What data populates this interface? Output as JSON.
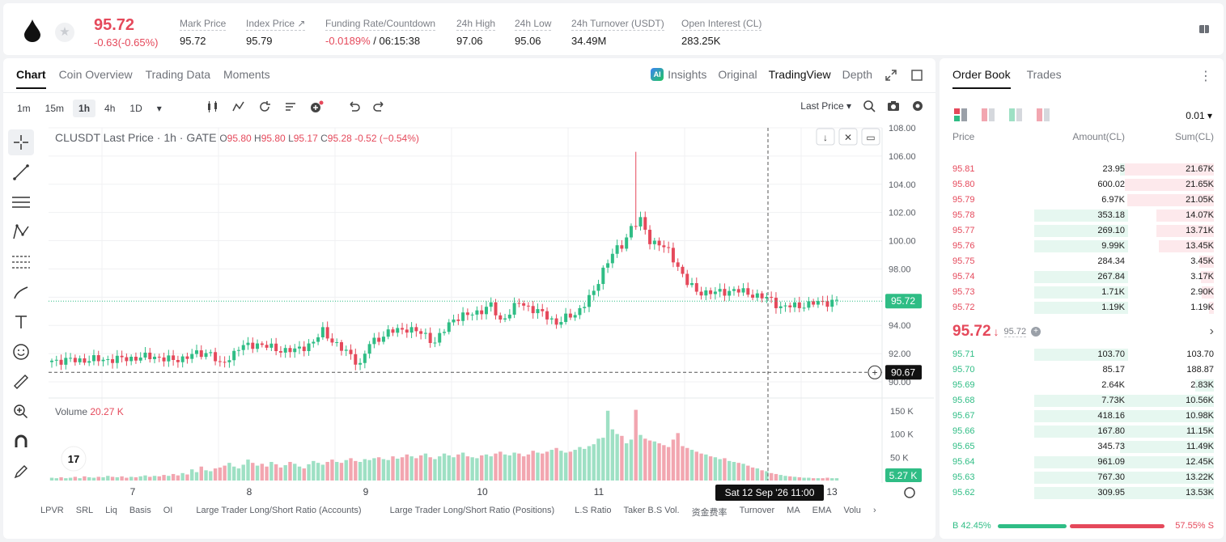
{
  "ticker": {
    "last_price": "95.72",
    "change": "-0.63(-0.65%)",
    "stats": [
      {
        "label": "Mark Price",
        "value": "95.72"
      },
      {
        "label": "Index Price ↗",
        "value": "95.79"
      },
      {
        "label": "Funding Rate/Countdown",
        "value_red": "-0.0189%",
        "value": " / 06:15:38"
      },
      {
        "label": "24h High",
        "value": "97.06"
      },
      {
        "label": "24h Low",
        "value": "95.06"
      },
      {
        "label": "24h Turnover (USDT)",
        "value": "34.49M"
      },
      {
        "label": "Open Interest (CL)",
        "value": "283.25K"
      }
    ]
  },
  "panel_tabs": [
    "Chart",
    "Coin Overview",
    "Trading Data",
    "Moments"
  ],
  "view_tabs": {
    "insights": "Insights",
    "ai_badge": "AI",
    "items": [
      "Original",
      "TradingView",
      "Depth"
    ]
  },
  "timeframes": [
    "1m",
    "15m",
    "1h",
    "4h",
    "1D"
  ],
  "active_timeframe": "1h",
  "price_source": "Last Price",
  "legend": {
    "title": "CLUSDT Last Price · 1h · GATE",
    "o": "95.80",
    "h": "95.80",
    "l": "95.17",
    "c": "95.28",
    "change": "-0.52 (−0.54%)",
    "o_lbl": "O",
    "h_lbl": "H",
    "l_lbl": "L",
    "c_lbl": "C"
  },
  "volume_legend": {
    "label": "Volume",
    "value": "20.27 K"
  },
  "chart_data": {
    "type": "candlestick",
    "y_price_ticks": [
      "108.00",
      "106.00",
      "104.00",
      "102.00",
      "100.00",
      "98.00",
      "96.00",
      "94.00",
      "92.00",
      "90.00"
    ],
    "y_price_range": [
      90,
      108
    ],
    "y_volume_ticks": [
      "150 K",
      "100 K",
      "50 K"
    ],
    "x_ticks": [
      "7",
      "8",
      "9",
      "10",
      "11",
      "12",
      "13"
    ],
    "current_price_label": "95.72",
    "crosshair_price_label": "90.67",
    "crosshair_time_label": "Sat 12 Sep '26   11:00",
    "current_volume_label": "5.27 K",
    "volume_range": [
      0,
      160000
    ],
    "anchors": [
      [
        0,
        91.5
      ],
      [
        14,
        91.6
      ],
      [
        22,
        91.8
      ],
      [
        26,
        91.5
      ],
      [
        30,
        91.9
      ],
      [
        34,
        92.1
      ],
      [
        36,
        91.1
      ],
      [
        40,
        92.4
      ],
      [
        44,
        92.7
      ],
      [
        48,
        92.3
      ],
      [
        52,
        92.2
      ],
      [
        56,
        92.8
      ],
      [
        58,
        93.6
      ],
      [
        62,
        92.3
      ],
      [
        64,
        91.9
      ],
      [
        66,
        91.2
      ],
      [
        68,
        92.7
      ],
      [
        72,
        93.5
      ],
      [
        76,
        93.8
      ],
      [
        80,
        93.3
      ],
      [
        82,
        92.8
      ],
      [
        86,
        94.5
      ],
      [
        90,
        94.8
      ],
      [
        94,
        95.4
      ],
      [
        96,
        94.3
      ],
      [
        100,
        95.6
      ],
      [
        104,
        95.0
      ],
      [
        108,
        94.2
      ],
      [
        112,
        94.8
      ],
      [
        116,
        96.3
      ],
      [
        118,
        98.0
      ],
      [
        120,
        99.1
      ],
      [
        122,
        99.6
      ],
      [
        124,
        101.0
      ],
      [
        126,
        101.4
      ],
      [
        128,
        100.0
      ],
      [
        130,
        99.8
      ],
      [
        132,
        99.2
      ],
      [
        134,
        98.2
      ],
      [
        136,
        97.0
      ],
      [
        138,
        96.4
      ],
      [
        142,
        96.3
      ],
      [
        146,
        96.5
      ],
      [
        150,
        96.2
      ],
      [
        154,
        95.8
      ],
      [
        156,
        95.3
      ],
      [
        160,
        95.4
      ],
      [
        164,
        95.6
      ],
      [
        168,
        95.72
      ]
    ],
    "spike": {
      "index": 125,
      "high": 106.3
    },
    "volume_values": [
      6000,
      5000,
      7000,
      5000,
      6000,
      8000,
      5000,
      9000,
      7000,
      6000,
      8000,
      7000,
      10000,
      8000,
      7000,
      9000,
      6000,
      8000,
      7000,
      9000,
      11000,
      8000,
      10000,
      9000,
      12000,
      10000,
      14000,
      11000,
      16000,
      13000,
      24000,
      18000,
      30000,
      22000,
      20000,
      26000,
      28000,
      32000,
      38000,
      30000,
      26000,
      34000,
      45000,
      38000,
      32000,
      36000,
      30000,
      40000,
      35000,
      28000,
      33000,
      40000,
      36000,
      30000,
      26000,
      35000,
      42000,
      38000,
      34000,
      40000,
      45000,
      40000,
      38000,
      44000,
      48000,
      42000,
      40000,
      46000,
      44000,
      48000,
      50000,
      46000,
      44000,
      52000,
      47000,
      50000,
      56000,
      52000,
      48000,
      54000,
      58000,
      50000,
      46000,
      52000,
      58000,
      54000,
      50000,
      56000,
      60000,
      52000,
      50000,
      48000,
      54000,
      56000,
      52000,
      58000,
      62000,
      56000,
      54000,
      60000,
      58000,
      52000,
      56000,
      64000,
      60000,
      58000,
      62000,
      66000,
      70000,
      64000,
      60000,
      62000,
      66000,
      72000,
      68000,
      74000,
      78000,
      90000,
      92000,
      150000,
      110000,
      100000,
      96000,
      80000,
      88000,
      152000,
      98000,
      90000,
      86000,
      84000,
      80000,
      76000,
      72000,
      88000,
      102000,
      74000,
      70000,
      66000,
      62000,
      58000,
      56000,
      52000,
      50000,
      46000,
      48000,
      42000,
      40000,
      38000,
      36000,
      32000,
      28000,
      26000,
      22000,
      20000,
      16000,
      14000,
      12000,
      10000,
      9000,
      8000,
      7000,
      6000,
      6000,
      5000,
      5000,
      5000,
      6000,
      5000,
      5000
    ]
  },
  "bottom_tools": [
    "LPVR",
    "SRL",
    "Liq",
    "Basis",
    "OI",
    "Large Trader Long/Short Ratio (Accounts)",
    "Large Trader Long/Short Ratio (Positions)",
    "L.S Ratio",
    "Taker B.S Vol.",
    "资金费率",
    "Turnover",
    "MA",
    "EMA",
    "Volu"
  ],
  "orderbook": {
    "tabs": [
      "Order Book",
      "Trades"
    ],
    "precision": "0.01",
    "headers": {
      "price": "Price",
      "amount": "Amount(CL)",
      "sum": "Sum(CL)"
    },
    "asks": [
      {
        "price": "95.81",
        "amount": "23.95",
        "sum": "21.67K",
        "amt_w": 0.03,
        "sum_w": 0.34
      },
      {
        "price": "95.80",
        "amount": "600.02",
        "sum": "21.65K",
        "amt_w": 0.0,
        "sum_w": 0.34
      },
      {
        "price": "95.79",
        "amount": "6.97K",
        "sum": "21.05K",
        "amt_w": 0.0,
        "sum_w": 0.33
      },
      {
        "price": "95.78",
        "amount": "353.18",
        "sum": "14.07K",
        "amt_w": 0.36,
        "sum_w": 0.22
      },
      {
        "price": "95.77",
        "amount": "269.10",
        "sum": "13.71K",
        "amt_w": 0.36,
        "sum_w": 0.22
      },
      {
        "price": "95.76",
        "amount": "9.99K",
        "sum": "13.45K",
        "amt_w": 0.36,
        "sum_w": 0.21
      },
      {
        "price": "95.75",
        "amount": "284.34",
        "sum": "3.45K",
        "amt_w": 0.0,
        "sum_w": 0.055
      },
      {
        "price": "95.74",
        "amount": "267.84",
        "sum": "3.17K",
        "amt_w": 0.36,
        "sum_w": 0.05
      },
      {
        "price": "95.73",
        "amount": "1.71K",
        "sum": "2.90K",
        "amt_w": 0.36,
        "sum_w": 0.045
      },
      {
        "price": "95.72",
        "amount": "1.19K",
        "sum": "1.19K",
        "amt_w": 0.36,
        "sum_w": 0.02
      }
    ],
    "mid_price": "95.72",
    "mid_mark": "95.72",
    "bids": [
      {
        "price": "95.71",
        "amount": "103.70",
        "sum": "103.70",
        "amt_w": 0.36,
        "sum_w": 0.0
      },
      {
        "price": "95.70",
        "amount": "85.17",
        "sum": "188.87",
        "amt_w": 0.0,
        "sum_w": 0.0
      },
      {
        "price": "95.69",
        "amount": "2.64K",
        "sum": "2.83K",
        "amt_w": 0.0,
        "sum_w": 0.07
      },
      {
        "price": "95.68",
        "amount": "7.73K",
        "sum": "10.56K",
        "amt_w": 0.36,
        "sum_w": 0.33
      },
      {
        "price": "95.67",
        "amount": "418.16",
        "sum": "10.98K",
        "amt_w": 0.36,
        "sum_w": 0.34
      },
      {
        "price": "95.66",
        "amount": "167.80",
        "sum": "11.15K",
        "amt_w": 0.36,
        "sum_w": 0.35
      },
      {
        "price": "95.65",
        "amount": "345.73",
        "sum": "11.49K",
        "amt_w": 0.0,
        "sum_w": 0.36
      },
      {
        "price": "95.64",
        "amount": "961.09",
        "sum": "12.45K",
        "amt_w": 0.36,
        "sum_w": 0.39
      },
      {
        "price": "95.63",
        "amount": "767.30",
        "sum": "13.22K",
        "amt_w": 0.36,
        "sum_w": 0.41
      },
      {
        "price": "95.62",
        "amount": "309.95",
        "sum": "13.53K",
        "amt_w": 0.36,
        "sum_w": 0.42
      }
    ],
    "buy_ratio": "42.45%",
    "sell_ratio": "57.55%",
    "buy_label": "B",
    "sell_label": "S",
    "buy_fraction": 0.4245
  },
  "colors": {
    "up": "#2fbd85",
    "down": "#e5495b",
    "up_bar": "#9ee0c4",
    "down_bar": "#f2a6b0",
    "up_bg": "#e6f7f0",
    "down_bg": "#fde9ec"
  }
}
